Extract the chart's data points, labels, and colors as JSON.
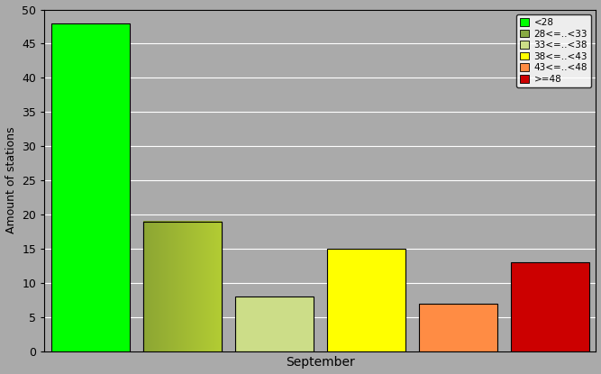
{
  "categories": [
    "<28",
    "28<=..<33",
    "33<=..<38",
    "38<=..<43",
    "43<=..<48",
    ">=48"
  ],
  "values": [
    48,
    19,
    8,
    15,
    7,
    13
  ],
  "bar_colors": [
    "#00ff00",
    "#88aa44",
    "#ccdd88",
    "#ffff00",
    "#ff8c44",
    "#cc0000"
  ],
  "bar_edgecolor": "#000000",
  "ylabel": "Amount of stations",
  "xlabel": "September",
  "ylim": [
    0,
    50
  ],
  "yticks": [
    0,
    5,
    10,
    15,
    20,
    25,
    30,
    35,
    40,
    45,
    50
  ],
  "background_color": "#aaaaaa",
  "plot_bg_color": "#aaaaaa",
  "legend_labels": [
    "<28",
    "28<=..<33",
    "33<=..<38",
    "38<=..<43",
    "43<=..<48",
    ">=48"
  ],
  "legend_colors": [
    "#00ff00",
    "#88aa44",
    "#ccdd88",
    "#ffff00",
    "#ff8c44",
    "#cc0000"
  ],
  "fig_width": 6.67,
  "fig_height": 4.15,
  "bar_width": 0.85,
  "xlim_left": -0.5,
  "xlim_right": 5.5
}
